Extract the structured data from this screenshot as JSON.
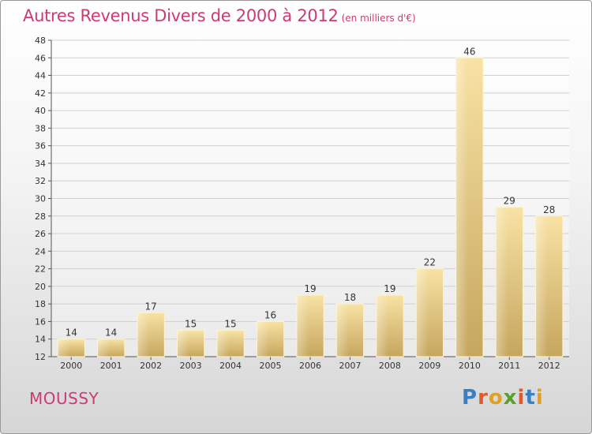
{
  "header": {
    "title": "Autres Revenus Divers de 2000 à 2012",
    "unit": "(en milliers d'€)"
  },
  "footer": {
    "commune": "MOUSSY",
    "logo_text": "Proxiti"
  },
  "colors": {
    "title": "#cc3b73",
    "bar_light": "#f7e0a0",
    "bar_dark": "#c8a860",
    "logo_letters": [
      "#3a7fc2",
      "#e05a2a",
      "#e0a020",
      "#5aa02a",
      "#e05a2a",
      "#3a7fc2",
      "#e0a020"
    ]
  },
  "chart_data": {
    "type": "bar",
    "categories": [
      "2000",
      "2001",
      "2002",
      "2003",
      "2004",
      "2005",
      "2006",
      "2007",
      "2008",
      "2009",
      "2010",
      "2011",
      "2012"
    ],
    "values": [
      14,
      14,
      17,
      15,
      15,
      16,
      19,
      18,
      19,
      22,
      46,
      29,
      28
    ],
    "ylim": [
      12,
      48
    ],
    "yticks": [
      12,
      14,
      16,
      18,
      20,
      22,
      24,
      26,
      28,
      30,
      32,
      34,
      36,
      38,
      40,
      42,
      44,
      46,
      48
    ],
    "grid": true,
    "data_labels": true
  }
}
